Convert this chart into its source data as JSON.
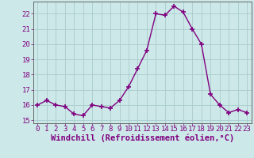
{
  "x": [
    0,
    1,
    2,
    3,
    4,
    5,
    6,
    7,
    8,
    9,
    10,
    11,
    12,
    13,
    14,
    15,
    16,
    17,
    18,
    19,
    20,
    21,
    22,
    23
  ],
  "y": [
    16.0,
    16.3,
    16.0,
    15.9,
    15.4,
    15.3,
    16.0,
    15.9,
    15.8,
    16.3,
    17.2,
    18.4,
    19.6,
    22.0,
    21.9,
    22.5,
    22.1,
    21.0,
    20.0,
    16.7,
    16.0,
    15.5,
    15.7,
    15.5
  ],
  "line_color": "#800080",
  "marker": "+",
  "marker_size": 4,
  "marker_linewidth": 1.2,
  "bg_color": "#cce8e8",
  "grid_color": "#aacccc",
  "axis_color": "#666666",
  "tick_color": "#800080",
  "xlabel": "Windchill (Refroidissement éolien,°C)",
  "ylim": [
    14.8,
    22.8
  ],
  "xlim": [
    -0.5,
    23.5
  ],
  "yticks": [
    15,
    16,
    17,
    18,
    19,
    20,
    21,
    22
  ],
  "xticks": [
    0,
    1,
    2,
    3,
    4,
    5,
    6,
    7,
    8,
    9,
    10,
    11,
    12,
    13,
    14,
    15,
    16,
    17,
    18,
    19,
    20,
    21,
    22,
    23
  ],
  "font_size": 6.5,
  "xlabel_font_size": 7.5,
  "linewidth": 1.0
}
